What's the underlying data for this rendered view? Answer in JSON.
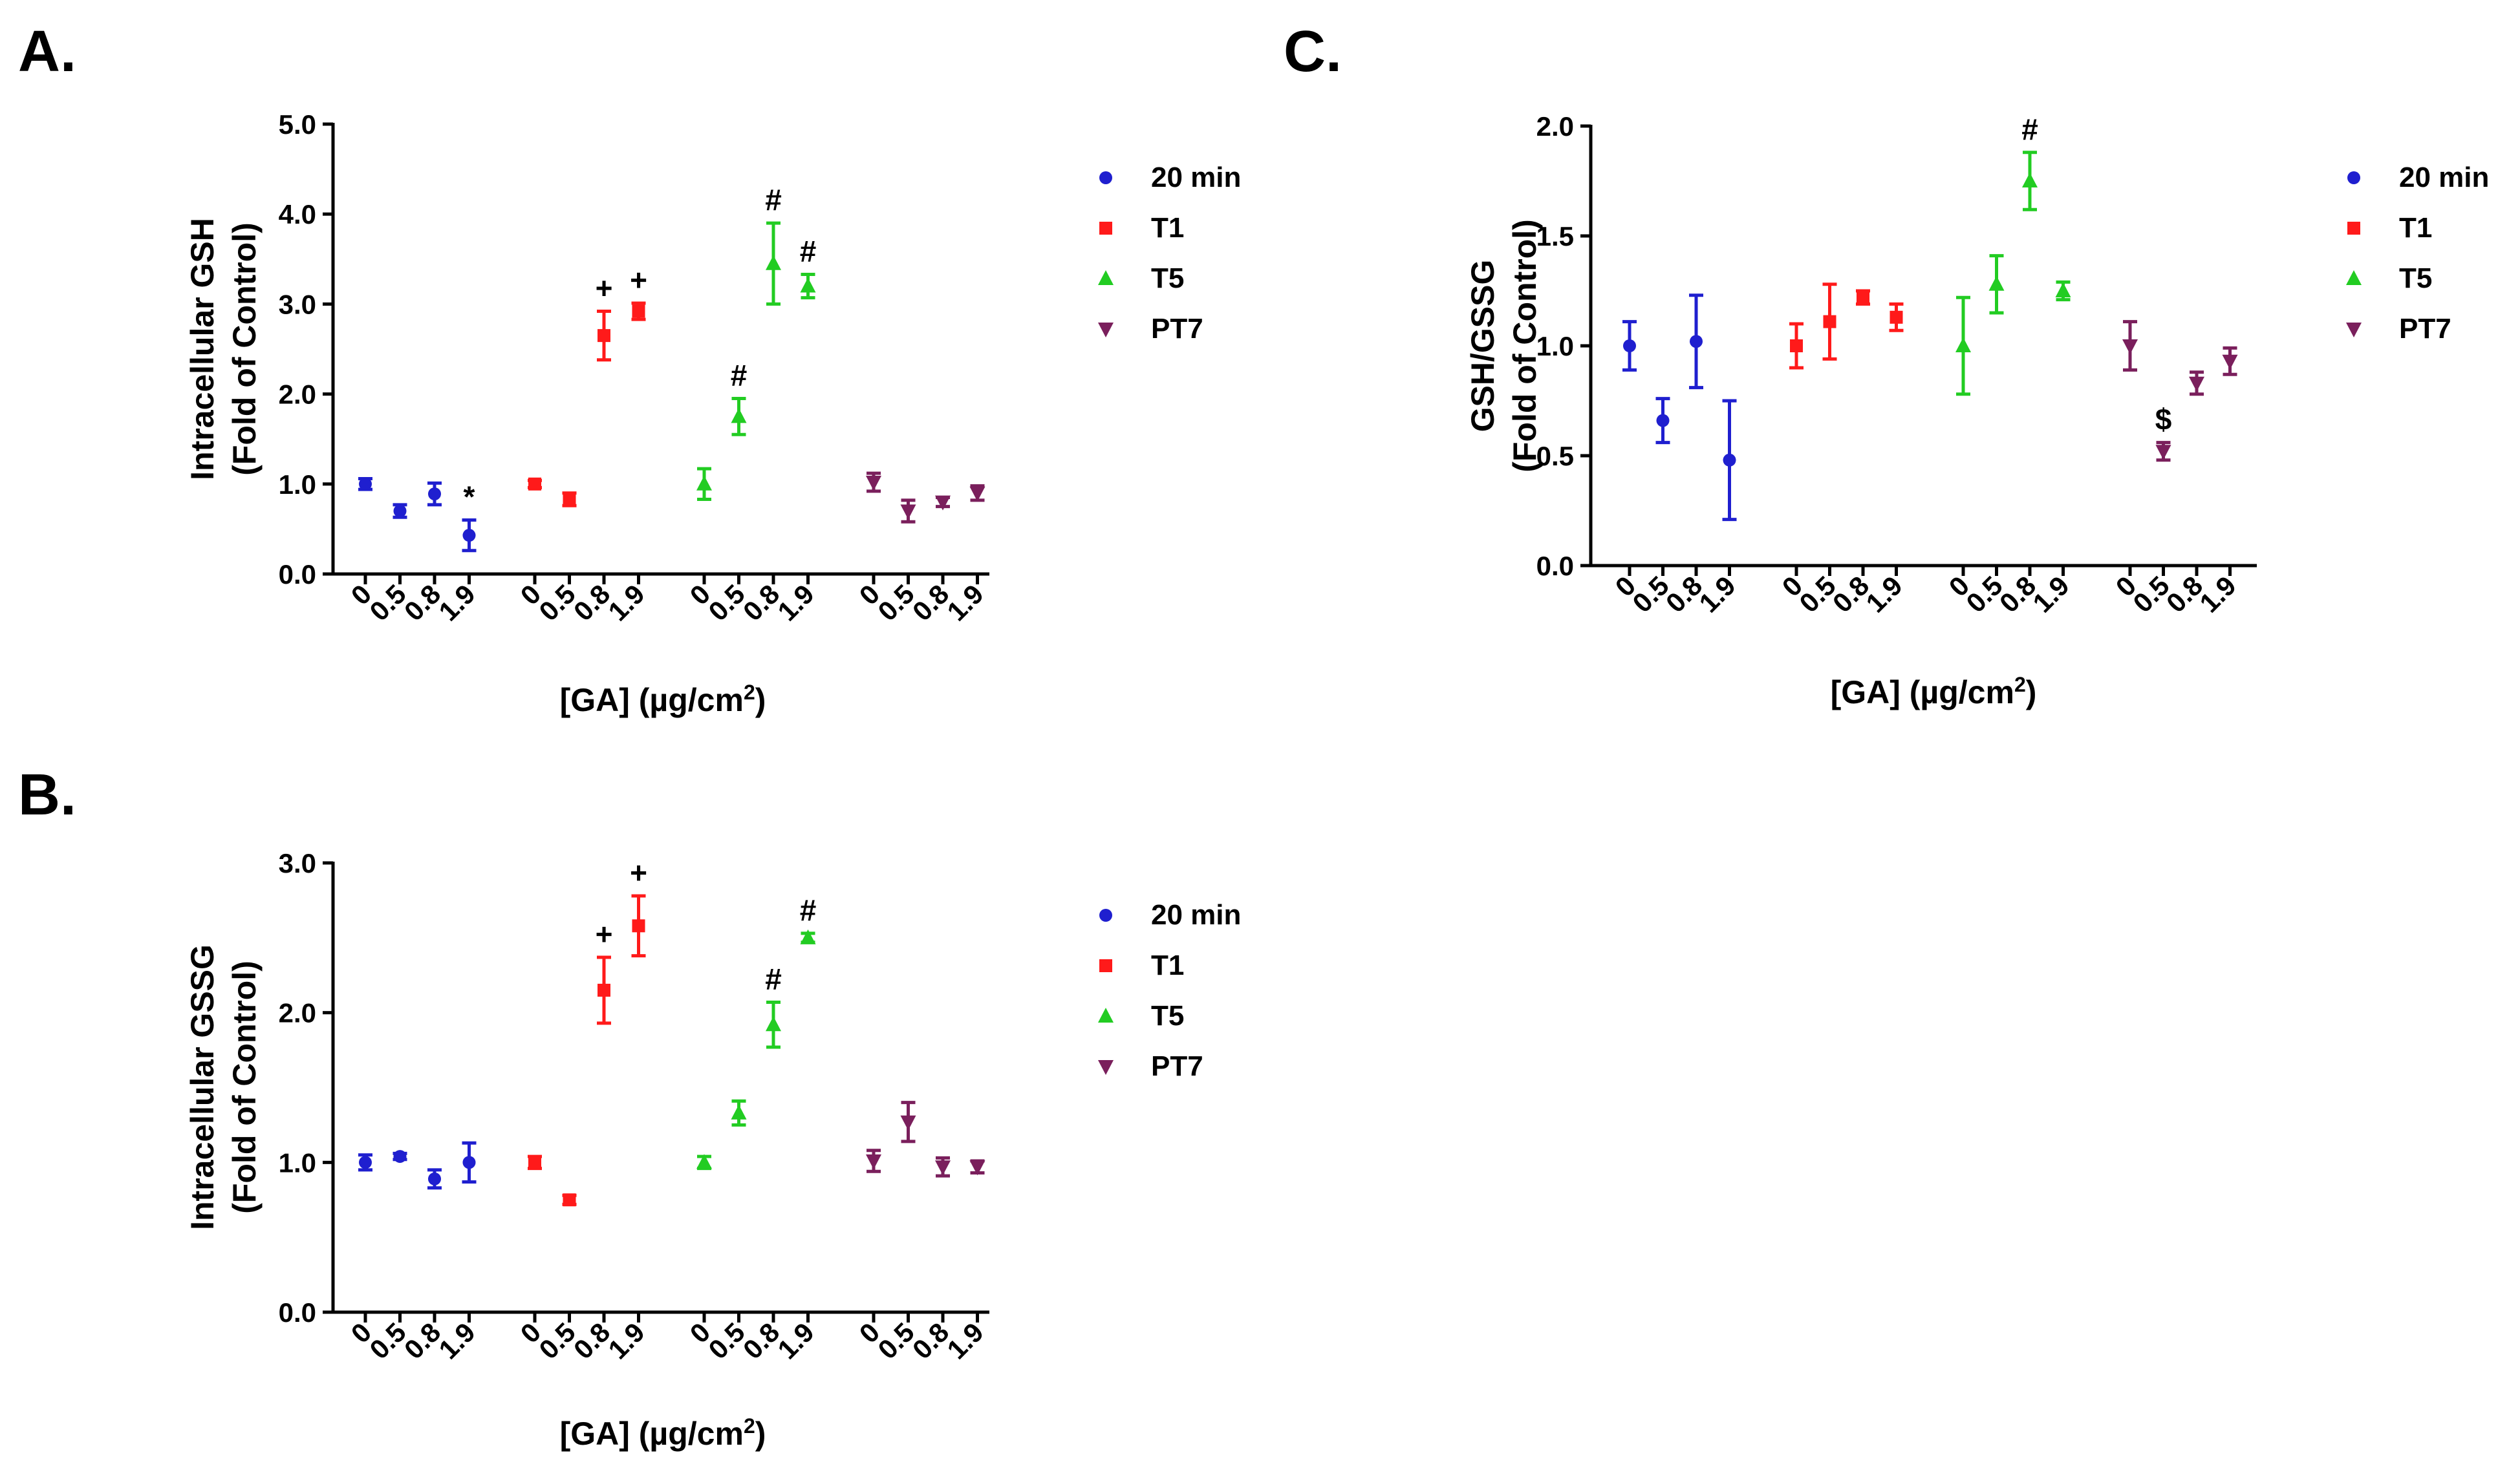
{
  "chart_data": [
    {
      "panel": "A.",
      "type": "scatter",
      "ylabel_line1": "Intracellular GSH",
      "ylabel_line2": "(Fold of Control)",
      "xlabel": "[GA] (µg/cm",
      "xlabel_sup": "2",
      "xlabel_end": ")",
      "yticks": [
        "0.0",
        "1.0",
        "2.0",
        "3.0",
        "4.0",
        "5.0"
      ],
      "ylim": [
        0,
        5
      ],
      "xticks": [
        "0",
        "0.5",
        "0.8",
        "1.9"
      ],
      "series": [
        {
          "name": "20 min",
          "color": "#1f1fcf",
          "marker": "circle",
          "values": [
            1.0,
            0.7,
            0.89,
            0.43
          ],
          "errors": [
            0.06,
            0.07,
            0.12,
            0.17
          ],
          "annotations": [
            "",
            "",
            "",
            "*"
          ]
        },
        {
          "name": "T1",
          "color": "#ff1a1a",
          "marker": "square",
          "values": [
            1.0,
            0.83,
            2.65,
            2.92
          ],
          "errors": [
            0.04,
            0.07,
            0.27,
            0.09
          ],
          "annotations": [
            "",
            "",
            "+",
            "+"
          ]
        },
        {
          "name": "T5",
          "color": "#22cc22",
          "marker": "triangle-up",
          "values": [
            1.0,
            1.75,
            3.45,
            3.2
          ],
          "errors": [
            0.17,
            0.2,
            0.45,
            0.13
          ],
          "annotations": [
            "",
            "#",
            "#",
            "#"
          ]
        },
        {
          "name": "PT7",
          "color": "#7a1f5c",
          "marker": "triangle-down",
          "values": [
            1.02,
            0.7,
            0.8,
            0.9
          ],
          "errors": [
            0.1,
            0.12,
            0.05,
            0.08
          ],
          "annotations": [
            "",
            "",
            "",
            ""
          ]
        }
      ]
    },
    {
      "panel": "B.",
      "type": "scatter",
      "ylabel_line1": "Intracellular GSSG",
      "ylabel_line2": "(Fold of Control)",
      "xlabel": "[GA] (µg/cm",
      "xlabel_sup": "2",
      "xlabel_end": ")",
      "yticks": [
        "0.0",
        "1.0",
        "2.0",
        "3.0"
      ],
      "ylim": [
        0,
        3
      ],
      "xticks": [
        "0",
        "0.5",
        "0.8",
        "1.9"
      ],
      "series": [
        {
          "name": "20 min",
          "color": "#1f1fcf",
          "marker": "circle",
          "values": [
            1.0,
            1.04,
            0.89,
            1.0
          ],
          "errors": [
            0.05,
            0.02,
            0.06,
            0.13
          ],
          "annotations": [
            "",
            "",
            "",
            ""
          ]
        },
        {
          "name": "T1",
          "color": "#ff1a1a",
          "marker": "square",
          "values": [
            1.0,
            0.75,
            2.15,
            2.58
          ],
          "errors": [
            0.04,
            0.03,
            0.22,
            0.2
          ],
          "annotations": [
            "",
            "",
            "+",
            "+"
          ]
        },
        {
          "name": "T5",
          "color": "#22cc22",
          "marker": "triangle-up",
          "values": [
            1.0,
            1.33,
            1.92,
            2.5
          ],
          "errors": [
            0.04,
            0.08,
            0.15,
            0.03
          ],
          "annotations": [
            "",
            "",
            "#",
            "#"
          ]
        },
        {
          "name": "PT7",
          "color": "#7a1f5c",
          "marker": "triangle-down",
          "values": [
            1.01,
            1.27,
            0.97,
            0.97
          ],
          "errors": [
            0.07,
            0.13,
            0.06,
            0.04
          ],
          "annotations": [
            "",
            "",
            "",
            ""
          ]
        }
      ]
    },
    {
      "panel": "C.",
      "type": "scatter",
      "ylabel_line1": "GSH/GSSG",
      "ylabel_line2": "(Fold of Control)",
      "xlabel": "[GA] (µg/cm",
      "xlabel_sup": "2",
      "xlabel_end": ")",
      "yticks": [
        "0.0",
        "0.5",
        "1.0",
        "1.5",
        "2.0"
      ],
      "ylim": [
        0,
        2
      ],
      "xticks": [
        "0",
        "0.5",
        "0.8",
        "1.9"
      ],
      "series": [
        {
          "name": "20 min",
          "color": "#1f1fcf",
          "marker": "circle",
          "values": [
            1.0,
            0.66,
            1.02,
            0.48
          ],
          "errors": [
            0.11,
            0.1,
            0.21,
            0.27
          ],
          "annotations": [
            "",
            "",
            "",
            ""
          ]
        },
        {
          "name": "T1",
          "color": "#ff1a1a",
          "marker": "square",
          "values": [
            1.0,
            1.11,
            1.22,
            1.13
          ],
          "errors": [
            0.1,
            0.17,
            0.03,
            0.06
          ],
          "annotations": [
            "",
            "",
            "",
            ""
          ]
        },
        {
          "name": "T5",
          "color": "#22cc22",
          "marker": "triangle-up",
          "values": [
            1.0,
            1.28,
            1.75,
            1.25
          ],
          "errors": [
            0.22,
            0.13,
            0.13,
            0.04
          ],
          "annotations": [
            "",
            "",
            "#",
            ""
          ]
        },
        {
          "name": "PT7",
          "color": "#7a1f5c",
          "marker": "triangle-down",
          "values": [
            1.0,
            0.52,
            0.83,
            0.93
          ],
          "errors": [
            0.11,
            0.04,
            0.05,
            0.06
          ],
          "annotations": [
            "",
            "$",
            "",
            ""
          ]
        }
      ]
    }
  ]
}
